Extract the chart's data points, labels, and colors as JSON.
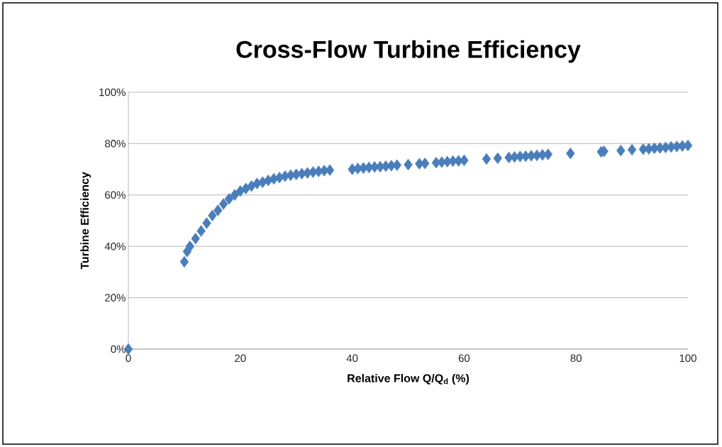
{
  "chart_data": {
    "type": "scatter",
    "title": "Cross-Flow Turbine Efficiency",
    "xlabel": "Relative Flow Q/Q$_{d}$  (%)",
    "ylabel": "Turbine Efficiency",
    "x": [
      0,
      10,
      10.5,
      11,
      12,
      13,
      14,
      15,
      16,
      17,
      18,
      19,
      20,
      21,
      22,
      23,
      24,
      25,
      26,
      27,
      28,
      29,
      30,
      31,
      32,
      33,
      34,
      35,
      36,
      40,
      41,
      42,
      43,
      44,
      45,
      46,
      47,
      48,
      50,
      52,
      53,
      55,
      56,
      57,
      58,
      59,
      60,
      64,
      66,
      68,
      69,
      70,
      71,
      72,
      73,
      74,
      75,
      79,
      84.5,
      85,
      88,
      90,
      92,
      93,
      94,
      95,
      96,
      97,
      98,
      99,
      100
    ],
    "values": [
      0,
      34,
      38,
      40,
      43,
      46,
      49,
      52,
      54,
      56.5,
      58.5,
      60,
      61.5,
      62.5,
      63.5,
      64.5,
      65,
      65.7,
      66.3,
      66.8,
      67.3,
      67.7,
      68,
      68.3,
      68.6,
      68.9,
      69.2,
      69.5,
      69.7,
      70,
      70.3,
      70.5,
      70.7,
      70.9,
      71,
      71.2,
      71.4,
      71.6,
      71.8,
      72.2,
      72.3,
      72.6,
      72.8,
      73,
      73.2,
      73.3,
      73.5,
      74,
      74.3,
      74.6,
      74.8,
      75,
      75.1,
      75.3,
      75.4,
      75.6,
      75.8,
      76.2,
      76.8,
      77,
      77.3,
      77.6,
      77.8,
      78,
      78.2,
      78.3,
      78.5,
      78.7,
      78.9,
      79.1,
      79.3
    ],
    "color": "#4a7ebb",
    "marker": "diamond",
    "grid": "y",
    "xlim": [
      0,
      100
    ],
    "xticks": [
      0,
      20,
      40,
      60,
      80,
      100
    ],
    "ylim": [
      0,
      100
    ],
    "yticks": [
      {
        "value": 0,
        "label": "0%"
      },
      {
        "value": 20,
        "label": "20%"
      },
      {
        "value": 40,
        "label": "40%"
      },
      {
        "value": 60,
        "label": "60%"
      },
      {
        "value": 80,
        "label": "80%"
      },
      {
        "value": 100,
        "label": "100%"
      }
    ]
  }
}
